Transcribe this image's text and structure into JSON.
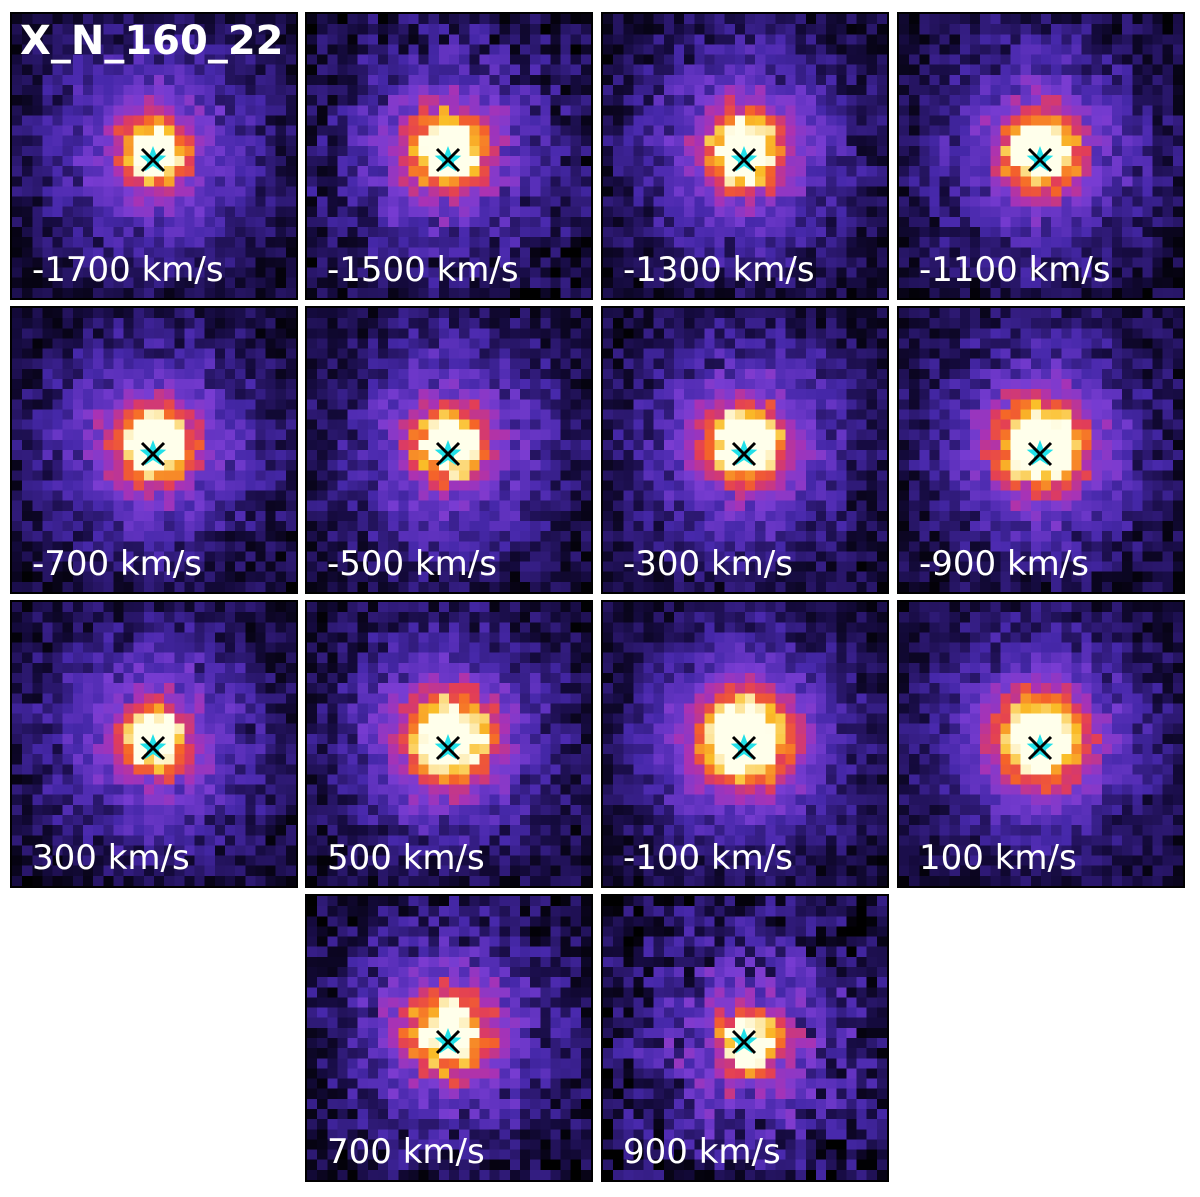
{
  "figure": {
    "title": "X_N_160_22",
    "panels": [
      {
        "label": "-1700 km/s"
      },
      {
        "label": "-1500 km/s"
      },
      {
        "label": "-1300 km/s"
      },
      {
        "label": "-1100 km/s"
      },
      {
        "label": "-700 km/s"
      },
      {
        "label": "-500 km/s"
      },
      {
        "label": "-300 km/s"
      },
      {
        "label": "-900 km/s"
      },
      {
        "label": "300 km/s"
      },
      {
        "label": "500 km/s"
      },
      {
        "label": "-100 km/s"
      },
      {
        "label": "100 km/s"
      },
      {
        "label": "700 km/s"
      },
      {
        "label": "900 km/s"
      }
    ],
    "colormap": "plasma-like",
    "marker_colors": {
      "cross": "#000000",
      "star": "#22e0e8"
    }
  }
}
